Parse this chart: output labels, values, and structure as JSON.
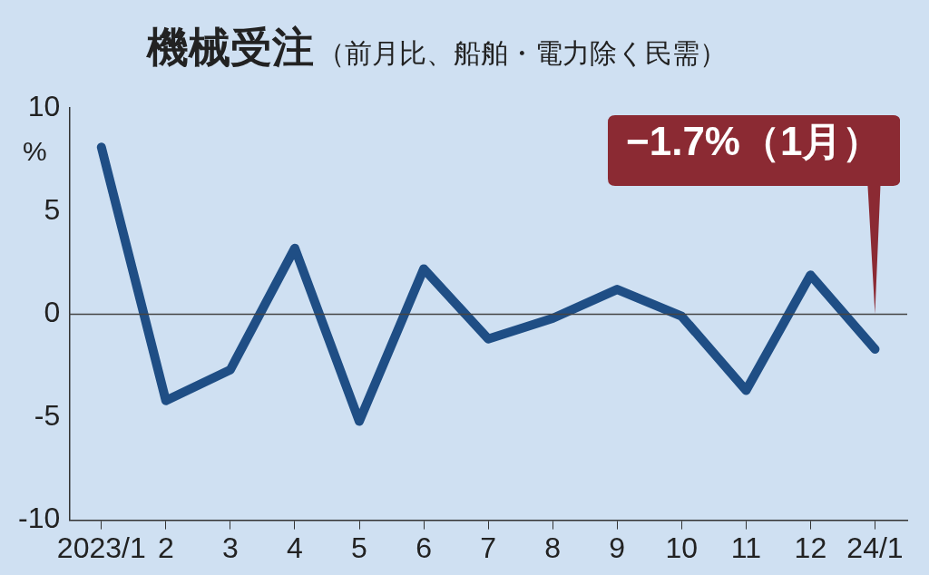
{
  "chart_data": {
    "type": "line",
    "title": "機械受注",
    "subtitle": "（前月比、船舶・電力除く民需）",
    "ylabel": "%",
    "categories": [
      "2023/1",
      "2",
      "3",
      "4",
      "5",
      "6",
      "7",
      "8",
      "9",
      "10",
      "11",
      "12",
      "24/1"
    ],
    "series": [
      {
        "color": "#1f4e85",
        "values": [
          8.1,
          -4.2,
          -2.7,
          3.2,
          -5.2,
          2.2,
          -1.2,
          -0.2,
          1.2,
          -0.1,
          -3.7,
          1.9,
          -1.7
        ]
      }
    ],
    "ylim": [
      -10,
      10
    ],
    "yticks": [
      -10,
      -5,
      0,
      5,
      10
    ],
    "grid": false,
    "legend": false,
    "marker": "none",
    "line_style": "solid",
    "ref_lines": [
      {
        "axis": "y",
        "value": 0,
        "color": "#444444"
      }
    ],
    "annotations": [
      "−1.7%（1月）"
    ]
  }
}
